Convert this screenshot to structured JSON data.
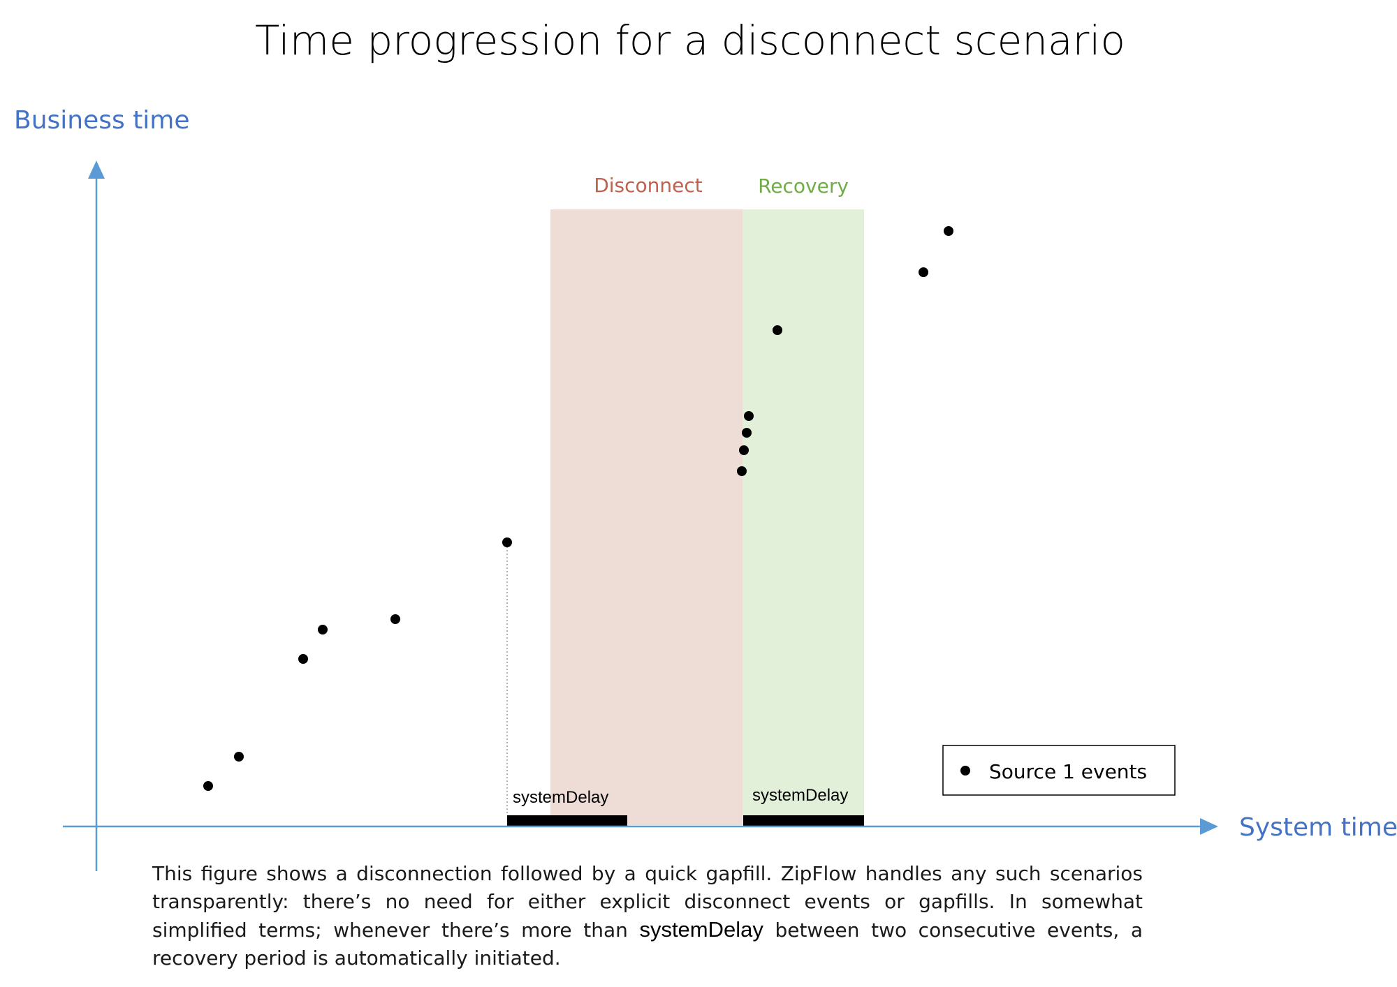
{
  "title": "Time progression for a disconnect scenario",
  "axes": {
    "y_label": "Business time",
    "x_label": "System time",
    "color": "#4472C4",
    "line_color": "#5B9BD5"
  },
  "regions": [
    {
      "id": "disconnect",
      "label": "Disconnect",
      "fill": "#EEDCD6",
      "label_color": "#C0604D"
    },
    {
      "id": "recovery",
      "label": "Recovery",
      "fill": "#E2EFD9",
      "label_color": "#70AD47"
    }
  ],
  "delay_bars": [
    {
      "id": "delay-1",
      "label": "systemDelay"
    },
    {
      "id": "delay-2",
      "label": "systemDelay"
    }
  ],
  "legend": {
    "label": "Source 1 events"
  },
  "caption": {
    "part1": "This figure shows a disconnection followed by a quick gapfill. ZipFlow handles any such scenarios transparently: there’s no need for either explicit disconnect events or gapfills. In somewhat simplified terms; whenever there’s more than ",
    "term": "systemDelay",
    "part2": " between two consecutive events, a recovery period is automatically initiated."
  }
}
